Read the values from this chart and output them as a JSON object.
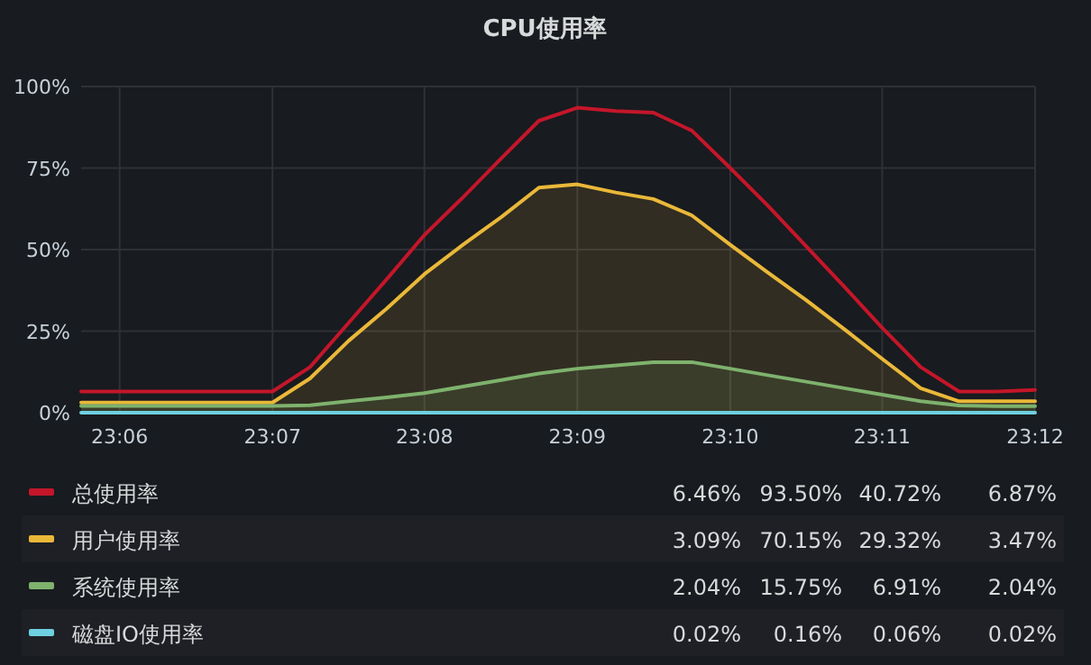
{
  "chart_data": {
    "type": "line",
    "title": "CPU使用率",
    "x": [
      23.0958,
      23.1,
      23.1042,
      23.1083,
      23.1125,
      23.1167,
      23.1208,
      23.125,
      23.1292,
      23.1333,
      23.1375,
      23.1417,
      23.1458,
      23.15,
      23.1542,
      23.1583,
      23.1625,
      23.1667,
      23.1708,
      23.175,
      23.1792,
      23.1833,
      23.1875,
      23.1917,
      23.1958,
      23.2
    ],
    "series": [
      {
        "name": "总使用率",
        "color": "#c4162a",
        "values": [
          6.5,
          6.5,
          6.5,
          6.5,
          6.5,
          6.5,
          14,
          27.5,
          41,
          54.5,
          66,
          78,
          89.5,
          93.5,
          92.5,
          92,
          86.5,
          75,
          63.5,
          51,
          38.5,
          26,
          14,
          6.5,
          6.5,
          7
        ]
      },
      {
        "name": "用户使用率",
        "color": "#eab839",
        "type": "area",
        "values": [
          3.1,
          3.1,
          3.1,
          3.1,
          3.1,
          3.1,
          10.5,
          22,
          32,
          42.5,
          51.5,
          60,
          69,
          70,
          67.5,
          65.5,
          60.5,
          51.5,
          43,
          34.5,
          25.5,
          16.5,
          7.5,
          3.5,
          3.5,
          3.5
        ]
      },
      {
        "name": "系统使用率",
        "color": "#7eb26d",
        "type": "area",
        "values": [
          2.1,
          2.1,
          2.1,
          2.1,
          2.1,
          2.1,
          2.3,
          3.5,
          4.7,
          6,
          8,
          10,
          12,
          13.5,
          14.5,
          15.5,
          15.5,
          13.5,
          11.5,
          9.5,
          7.5,
          5.5,
          3.5,
          2.2,
          2,
          2
        ]
      },
      {
        "name": "磁盘IO使用率",
        "color": "#6ed0e0",
        "values": [
          0,
          0,
          0,
          0,
          0,
          0,
          0,
          0,
          0,
          0,
          0,
          0,
          0,
          0,
          0,
          0,
          0,
          0,
          0,
          0,
          0,
          0,
          0,
          0,
          0,
          0
        ]
      }
    ],
    "xlim": [
      23.0958,
      23.2
    ],
    "xticks": [
      {
        "value": 23.1,
        "label": "23:06"
      },
      {
        "value": 23.1167,
        "label": "23:07"
      },
      {
        "value": 23.1333,
        "label": "23:08"
      },
      {
        "value": 23.15,
        "label": "23:09"
      },
      {
        "value": 23.1667,
        "label": "23:10"
      },
      {
        "value": 23.1833,
        "label": "23:11"
      },
      {
        "value": 23.2,
        "label": "23:12"
      }
    ],
    "ylim": [
      0,
      100
    ],
    "yticks": [
      {
        "value": 0,
        "label": "0%"
      },
      {
        "value": 25,
        "label": "25%"
      },
      {
        "value": 50,
        "label": "50%"
      },
      {
        "value": 75,
        "label": "75%"
      },
      {
        "value": 100,
        "label": "100%"
      }
    ],
    "grid": true,
    "legend": "bottom",
    "line_style": "solid",
    "annotations": [
      "6.46%",
      "93.50%",
      "40.72%",
      "6.87%",
      "3.09%",
      "70.15%",
      "29.32%",
      "3.47%",
      "2.04%",
      "15.75%",
      "6.91%",
      "2.04%",
      "0.02%",
      "0.16%",
      "0.06%",
      "0.02%"
    ]
  }
}
